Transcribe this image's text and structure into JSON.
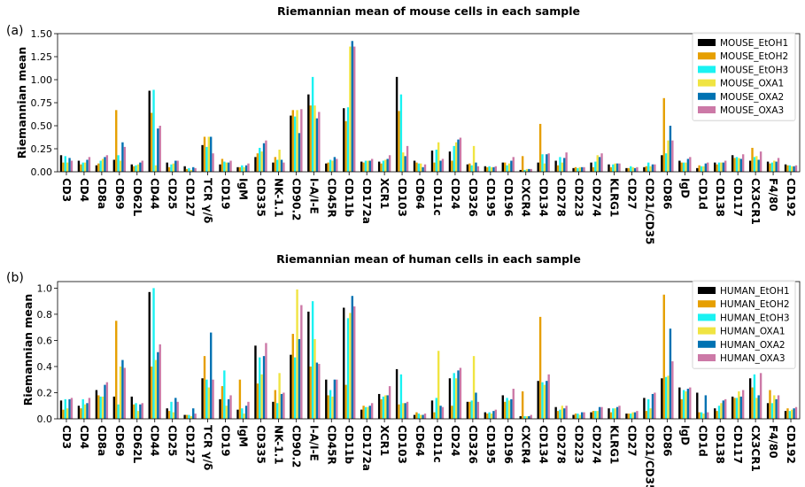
{
  "chart_data": [
    {
      "type": "bar",
      "panel_label": "(a)",
      "title": "Riemannian mean of mouse cells in each sample",
      "xlabel": "",
      "ylabel": "Riemannian mean",
      "ylim": [
        0,
        1.5
      ],
      "yticks": [
        0.0,
        0.25,
        0.5,
        0.75,
        1.0,
        1.25,
        1.5
      ],
      "ytick_labels": [
        "0.00",
        "0.25",
        "0.50",
        "0.75",
        "1.00",
        "1.25",
        "1.50"
      ],
      "grid": false,
      "legend_position": "top-right",
      "categories": [
        "CD3",
        "CD4",
        "CD8a",
        "CD69",
        "CD62L",
        "CD44",
        "CD25",
        "CD127",
        "TCR γ/δ",
        "CD19",
        "IgM",
        "CD335",
        "NK-1.1",
        "CD90.2",
        "I-A/I-E",
        "CD45R",
        "CD11b",
        "CD172a",
        "XCR1",
        "CD103",
        "CD64",
        "CD11c",
        "CD24",
        "CD326",
        "CD195",
        "CD196",
        "CXCR4",
        "CD134",
        "CD278",
        "CD223",
        "CD274",
        "KLRG1",
        "CD27",
        "CD21/CD35",
        "CD86",
        "IgD",
        "CD1d",
        "CD138",
        "CD117",
        "CX3CR1",
        "F4/80",
        "CD192"
      ],
      "series": [
        {
          "name": "MOUSE_EtOH1",
          "color": "#000000",
          "values": [
            0.18,
            0.12,
            0.07,
            0.13,
            0.08,
            0.88,
            0.1,
            0.06,
            0.29,
            0.08,
            0.05,
            0.16,
            0.1,
            0.61,
            0.84,
            0.09,
            0.69,
            0.11,
            0.11,
            1.03,
            0.12,
            0.23,
            0.22,
            0.08,
            0.06,
            0.1,
            0.02,
            0.1,
            0.12,
            0.04,
            0.1,
            0.08,
            0.04,
            0.05,
            0.18,
            0.12,
            0.04,
            0.1,
            0.18,
            0.12,
            0.11,
            0.08
          ]
        },
        {
          "name": "MOUSE_EtOH2",
          "color": "#E69F00",
          "values": [
            0.1,
            0.08,
            0.09,
            0.67,
            0.06,
            0.64,
            0.05,
            0.03,
            0.38,
            0.14,
            0.05,
            0.2,
            0.16,
            0.67,
            0.72,
            0.1,
            0.55,
            0.1,
            0.09,
            0.66,
            0.1,
            0.1,
            0.12,
            0.09,
            0.05,
            0.1,
            0.17,
            0.52,
            0.07,
            0.05,
            0.05,
            0.05,
            0.04,
            0.06,
            0.8,
            0.1,
            0.07,
            0.08,
            0.15,
            0.26,
            0.09,
            0.07
          ]
        },
        {
          "name": "MOUSE_EtOH3",
          "color": "#1AF2F2",
          "values": [
            0.17,
            0.1,
            0.12,
            0.18,
            0.07,
            0.89,
            0.08,
            0.04,
            0.27,
            0.11,
            0.07,
            0.26,
            0.13,
            0.6,
            1.03,
            0.13,
            0.7,
            0.12,
            0.12,
            0.84,
            0.09,
            0.24,
            0.28,
            0.07,
            0.06,
            0.07,
            0.02,
            0.19,
            0.16,
            0.04,
            0.11,
            0.08,
            0.06,
            0.1,
            0.2,
            0.1,
            0.06,
            0.1,
            0.16,
            0.16,
            0.1,
            0.07
          ]
        },
        {
          "name": "MOUSE_OXA1",
          "color": "#F0E442",
          "values": [
            0.1,
            0.1,
            0.14,
            0.12,
            0.08,
            0.07,
            0.09,
            0.02,
            0.38,
            0.1,
            0.05,
            0.22,
            0.24,
            0.67,
            0.72,
            0.12,
            1.36,
            0.12,
            0.13,
            0.21,
            0.09,
            0.32,
            0.32,
            0.28,
            0.05,
            0.09,
            0.03,
            0.09,
            0.1,
            0.05,
            0.18,
            0.09,
            0.05,
            0.06,
            0.34,
            0.1,
            0.06,
            0.1,
            0.15,
            0.17,
            0.12,
            0.06
          ]
        },
        {
          "name": "MOUSE_OXA2",
          "color": "#0072B2",
          "values": [
            0.15,
            0.13,
            0.16,
            0.32,
            0.1,
            0.47,
            0.12,
            0.05,
            0.38,
            0.1,
            0.07,
            0.31,
            0.13,
            0.42,
            0.58,
            0.16,
            1.42,
            0.12,
            0.14,
            0.17,
            0.05,
            0.12,
            0.35,
            0.1,
            0.05,
            0.12,
            0.03,
            0.19,
            0.15,
            0.05,
            0.16,
            0.09,
            0.04,
            0.08,
            0.5,
            0.14,
            0.09,
            0.1,
            0.14,
            0.13,
            0.11,
            0.06
          ]
        },
        {
          "name": "MOUSE_OXA3",
          "color": "#CC79A7",
          "values": [
            0.12,
            0.16,
            0.18,
            0.27,
            0.12,
            0.5,
            0.12,
            0.04,
            0.2,
            0.12,
            0.09,
            0.34,
            0.1,
            0.68,
            0.65,
            0.14,
            1.36,
            0.14,
            0.18,
            0.28,
            0.08,
            0.14,
            0.37,
            0.06,
            0.06,
            0.16,
            0.03,
            0.2,
            0.21,
            0.05,
            0.2,
            0.09,
            0.05,
            0.08,
            0.34,
            0.16,
            0.1,
            0.12,
            0.19,
            0.22,
            0.15,
            0.07
          ]
        }
      ]
    },
    {
      "type": "bar",
      "panel_label": "(b)",
      "title": "Riemannian mean of human cells in each sample",
      "xlabel": "",
      "ylabel": "Riemannian mean",
      "ylim": [
        0,
        1.05
      ],
      "yticks": [
        0.0,
        0.2,
        0.4,
        0.6,
        0.8,
        1.0
      ],
      "ytick_labels": [
        "0.0",
        "0.2",
        "0.4",
        "0.6",
        "0.8",
        "1.0"
      ],
      "grid": false,
      "legend_position": "top-right",
      "categories": [
        "CD3",
        "CD4",
        "CD8a",
        "CD69",
        "CD62L",
        "CD44",
        "CD25",
        "CD127",
        "TCR γ/δ",
        "CD19",
        "IgM",
        "CD335",
        "NK-1.1",
        "CD90.2",
        "I-A/I-E",
        "CD45R",
        "CD11b",
        "CD172a",
        "XCR1",
        "CD103",
        "CD64",
        "CD11c",
        "CD24",
        "CD326",
        "CD195",
        "CD196",
        "CXCR4",
        "CD134",
        "CD278",
        "CD223",
        "CD274",
        "KLRG1",
        "CD27",
        "CD21/CD35",
        "CD86",
        "IgD",
        "CD1d",
        "CD138",
        "CD117",
        "CX3CR1",
        "F4/80",
        "CD192"
      ],
      "series": [
        {
          "name": "HUMAN_EtOH1",
          "color": "#000000",
          "values": [
            0.14,
            0.1,
            0.22,
            0.17,
            0.17,
            0.97,
            0.08,
            0.03,
            0.31,
            0.15,
            0.07,
            0.56,
            0.13,
            0.49,
            0.82,
            0.3,
            0.85,
            0.07,
            0.19,
            0.38,
            0.03,
            0.14,
            0.31,
            0.13,
            0.05,
            0.18,
            0.02,
            0.29,
            0.09,
            0.03,
            0.05,
            0.08,
            0.04,
            0.16,
            0.31,
            0.24,
            0.2,
            0.08,
            0.17,
            0.31,
            0.12,
            0.06
          ]
        },
        {
          "name": "HUMAN_EtOH2",
          "color": "#E69F00",
          "values": [
            0.07,
            0.08,
            0.18,
            0.75,
            0.11,
            0.4,
            0.06,
            0.03,
            0.48,
            0.25,
            0.3,
            0.27,
            0.22,
            0.65,
            0.4,
            0.18,
            0.26,
            0.1,
            0.15,
            0.11,
            0.05,
            0.05,
            0.1,
            0.13,
            0.04,
            0.13,
            0.21,
            0.78,
            0.06,
            0.04,
            0.06,
            0.05,
            0.04,
            0.06,
            0.95,
            0.15,
            0.05,
            0.06,
            0.16,
            0.24,
            0.22,
            0.08
          ]
        },
        {
          "name": "HUMAN_EtOH3",
          "color": "#1AF2F2",
          "values": [
            0.15,
            0.15,
            0.17,
            0.11,
            0.12,
            1.0,
            0.13,
            0.03,
            0.3,
            0.37,
            0.08,
            0.47,
            0.12,
            0.47,
            0.9,
            0.22,
            0.77,
            0.09,
            0.17,
            0.34,
            0.04,
            0.16,
            0.35,
            0.14,
            0.05,
            0.16,
            0.02,
            0.28,
            0.07,
            0.04,
            0.06,
            0.08,
            0.04,
            0.15,
            0.32,
            0.22,
            0.05,
            0.1,
            0.16,
            0.34,
            0.12,
            0.06
          ]
        },
        {
          "name": "HUMAN_OXA1",
          "color": "#F0E442",
          "values": [
            0.08,
            0.11,
            0.17,
            0.4,
            0.06,
            0.45,
            0.05,
            0.02,
            0.24,
            0.1,
            0.04,
            0.34,
            0.35,
            0.99,
            0.61,
            0.17,
            0.81,
            0.09,
            0.18,
            0.12,
            0.03,
            0.52,
            0.31,
            0.48,
            0.04,
            0.14,
            0.02,
            0.26,
            0.1,
            0.03,
            0.06,
            0.08,
            0.05,
            0.08,
            0.33,
            0.21,
            0.04,
            0.12,
            0.21,
            0.16,
            0.18,
            0.07
          ]
        },
        {
          "name": "HUMAN_OXA2",
          "color": "#0072B2",
          "values": [
            0.15,
            0.12,
            0.26,
            0.45,
            0.11,
            0.51,
            0.16,
            0.08,
            0.66,
            0.15,
            0.1,
            0.48,
            0.19,
            0.61,
            0.43,
            0.3,
            0.94,
            0.1,
            0.18,
            0.12,
            0.03,
            0.1,
            0.37,
            0.2,
            0.06,
            0.15,
            0.02,
            0.29,
            0.08,
            0.05,
            0.09,
            0.09,
            0.05,
            0.19,
            0.69,
            0.23,
            0.18,
            0.14,
            0.17,
            0.18,
            0.15,
            0.08
          ]
        },
        {
          "name": "HUMAN_OXA3",
          "color": "#CC79A7",
          "values": [
            0.16,
            0.16,
            0.28,
            0.39,
            0.12,
            0.57,
            0.13,
            0.04,
            0.3,
            0.18,
            0.13,
            0.58,
            0.2,
            0.87,
            0.42,
            0.3,
            0.86,
            0.12,
            0.25,
            0.13,
            0.04,
            0.09,
            0.39,
            0.13,
            0.07,
            0.23,
            0.03,
            0.34,
            0.1,
            0.05,
            0.09,
            0.1,
            0.06,
            0.2,
            0.44,
            0.24,
            0.05,
            0.15,
            0.22,
            0.35,
            0.18,
            0.09
          ]
        }
      ]
    }
  ]
}
